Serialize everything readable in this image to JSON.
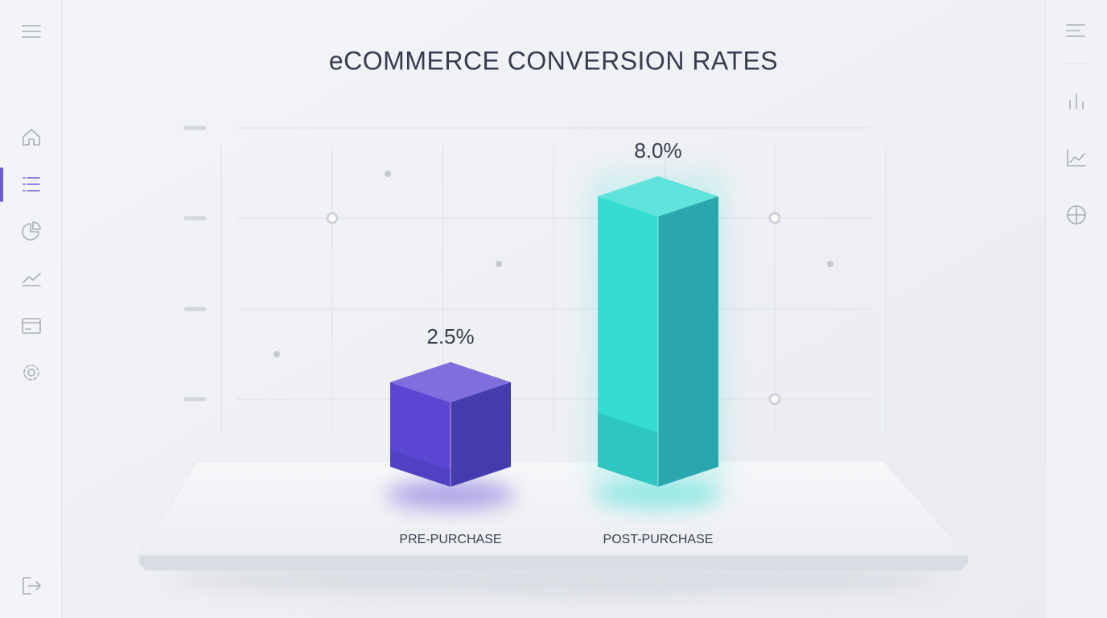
{
  "chart_data": {
    "type": "bar3d",
    "title": "eCOMMERCE CONVERSION RATES",
    "categories": [
      "PRE-PURCHASE",
      "POST-PURCHASE"
    ],
    "values": [
      2.5,
      8.0
    ],
    "value_labels": [
      "2.5%",
      "8.0%"
    ],
    "colors": [
      "#5b47d4",
      "#34dcd2"
    ]
  }
}
